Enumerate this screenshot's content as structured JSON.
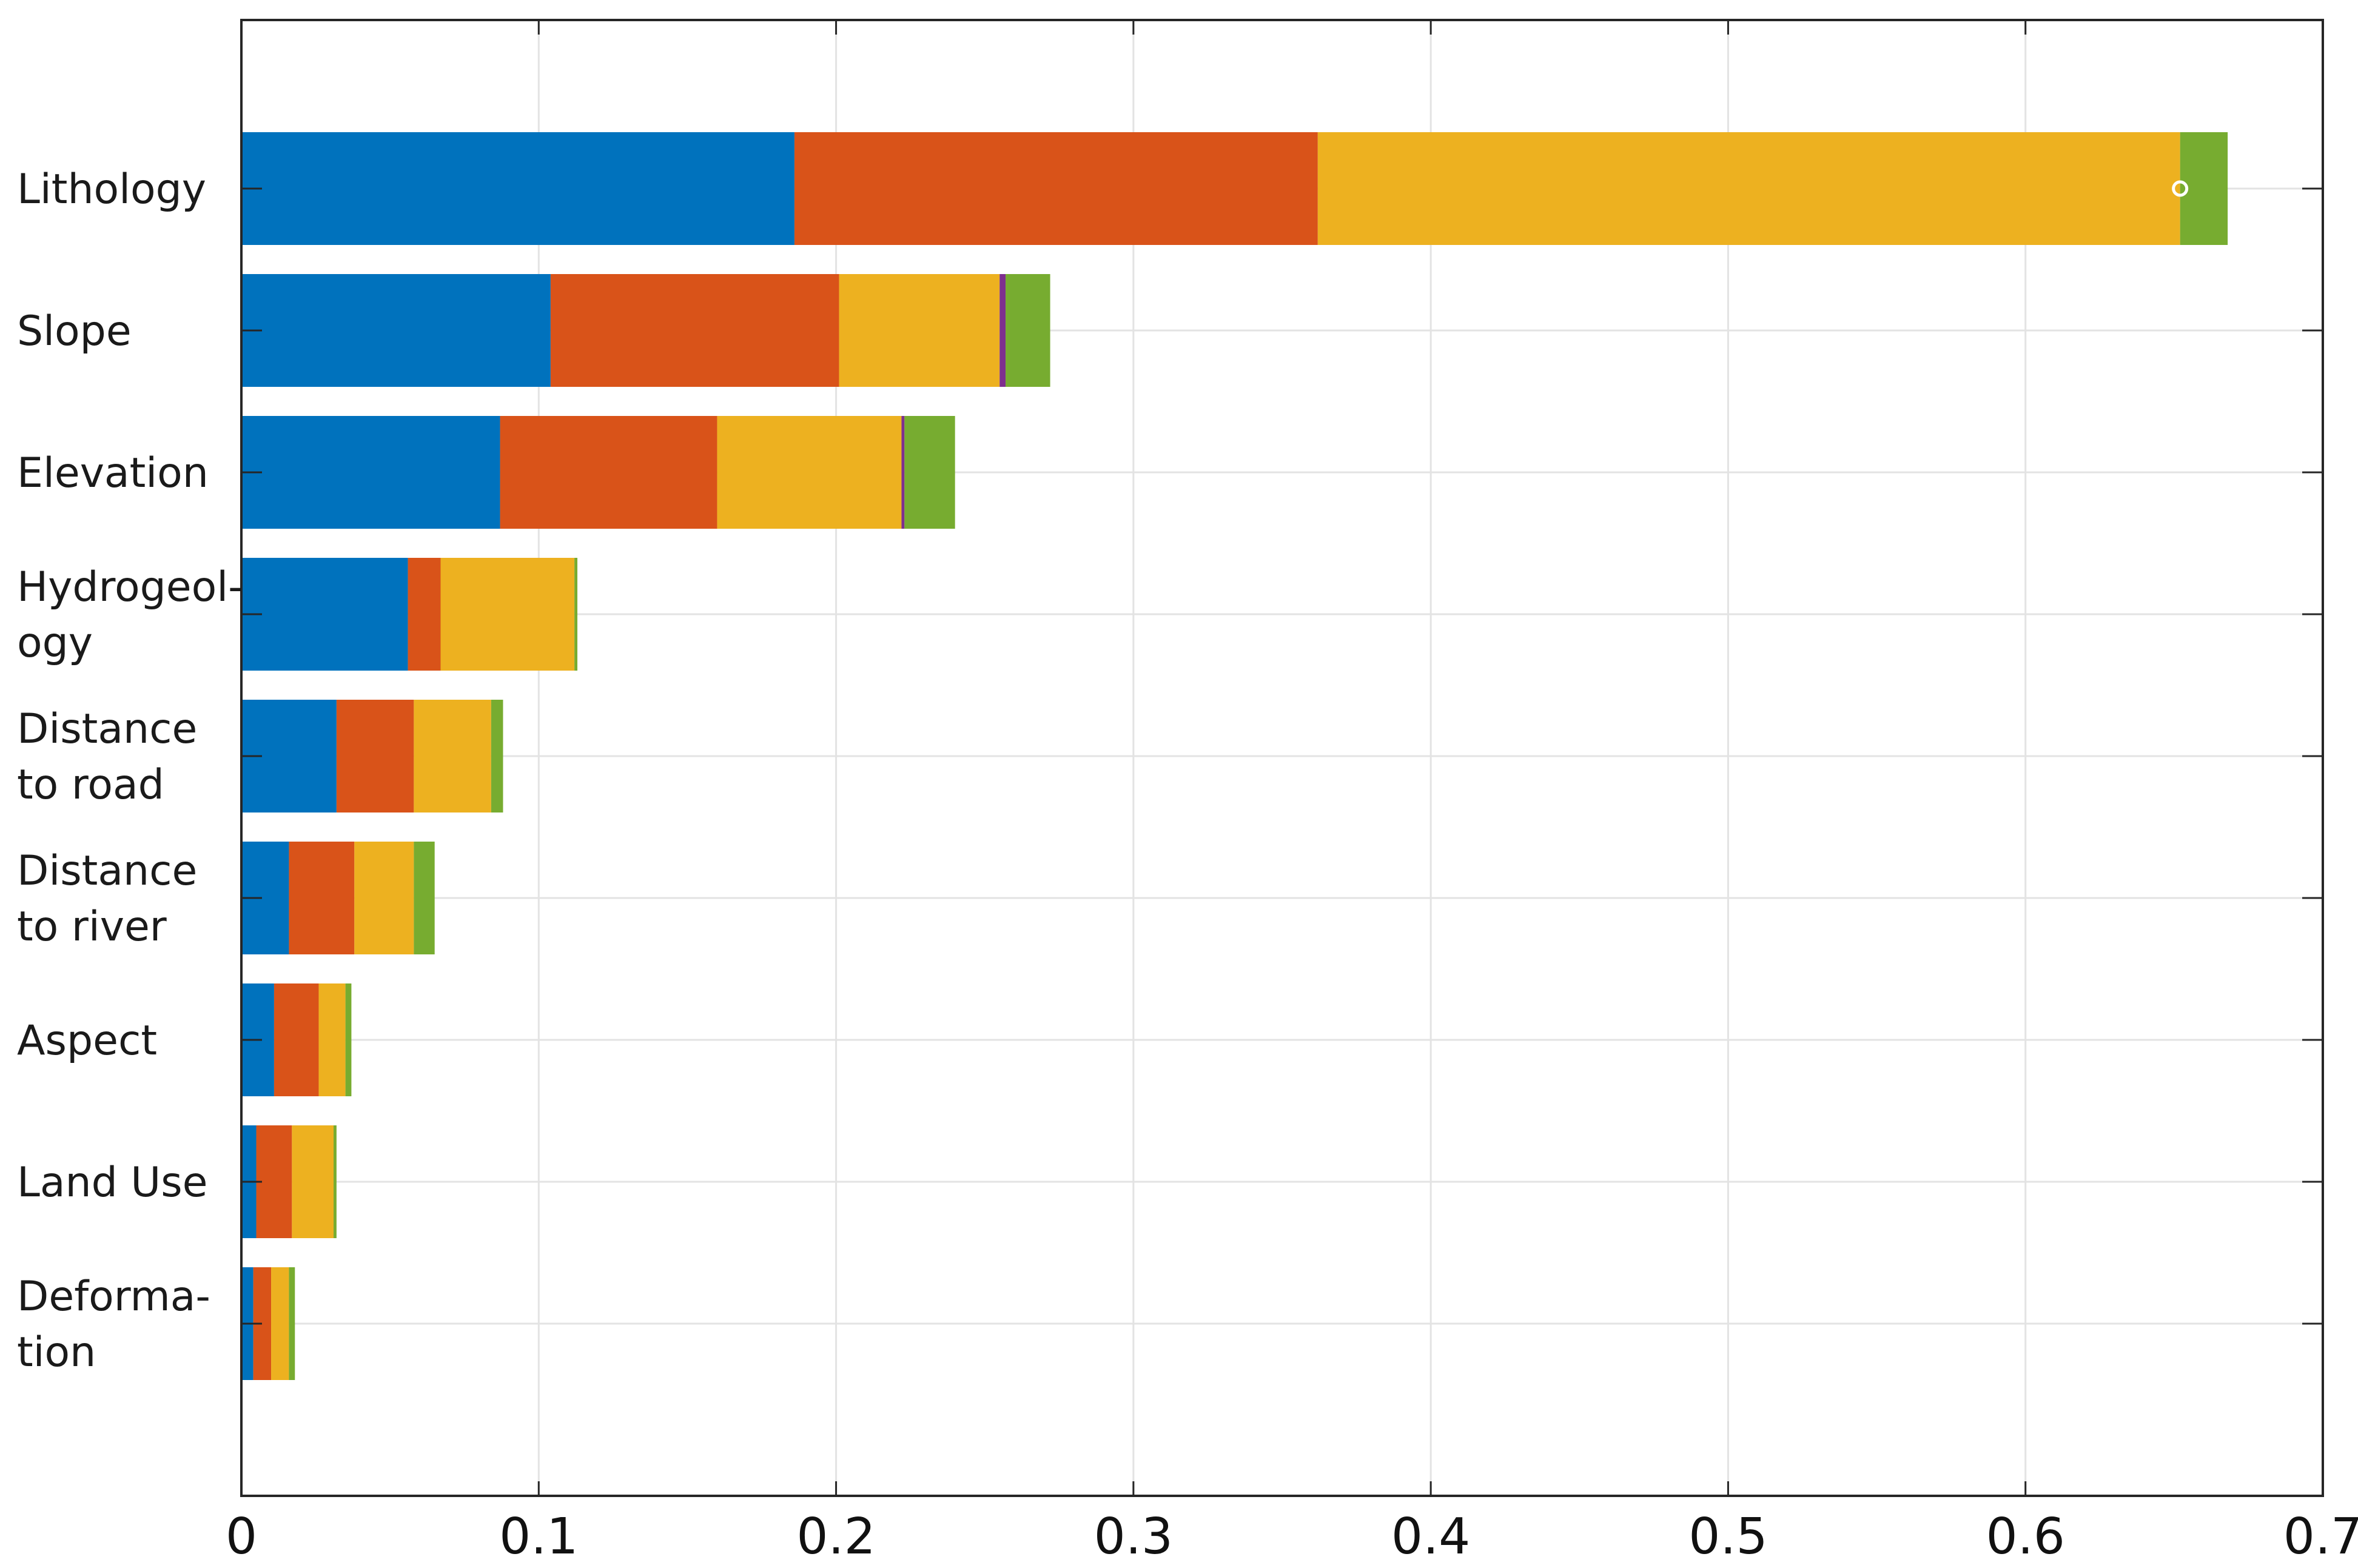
{
  "chart_data": {
    "type": "bar",
    "orientation": "horizontal",
    "stacked": true,
    "title": "",
    "xlabel": "",
    "ylabel": "",
    "xlim": [
      0,
      0.7
    ],
    "grid": true,
    "xticks": [
      "0",
      "0.1",
      "0.2",
      "0.3",
      "0.4",
      "0.5",
      "0.6",
      "0.7"
    ],
    "categories": [
      "Lithology",
      "Slope",
      "Elevation",
      "Hydrogeol-ogy",
      "Distance to road",
      "Distance to river",
      "Aspect",
      "Land Use",
      "Deforma-tion"
    ],
    "category_lines": [
      [
        "Lithology"
      ],
      [
        "Slope"
      ],
      [
        "Elevation"
      ],
      [
        "Hydrogeol-",
        "ogy"
      ],
      [
        "Distance",
        "to road"
      ],
      [
        "Distance",
        "to river"
      ],
      [
        "Aspect"
      ],
      [
        "Land Use"
      ],
      [
        "Deforma-",
        "tion"
      ]
    ],
    "series": [
      {
        "color": "#0072BD",
        "values": [
          0.186,
          0.104,
          0.087,
          0.056,
          0.032,
          0.016,
          0.011,
          0.005,
          0.004
        ]
      },
      {
        "color": "#D95319",
        "values": [
          0.176,
          0.097,
          0.073,
          0.011,
          0.026,
          0.022,
          0.015,
          0.012,
          0.006
        ]
      },
      {
        "color": "#EDB120",
        "values": [
          0.29,
          0.054,
          0.062,
          0.045,
          0.026,
          0.02,
          0.009,
          0.014,
          0.006
        ]
      },
      {
        "color": "#7E2F8E",
        "values": [
          0.0,
          0.002,
          0.001,
          0.0,
          0.0,
          0.0,
          0.0,
          0.0,
          0.0
        ]
      },
      {
        "color": "#77AC30",
        "values": [
          0.016,
          0.015,
          0.017,
          0.001,
          0.004,
          0.007,
          0.002,
          0.001,
          0.002
        ]
      }
    ]
  }
}
